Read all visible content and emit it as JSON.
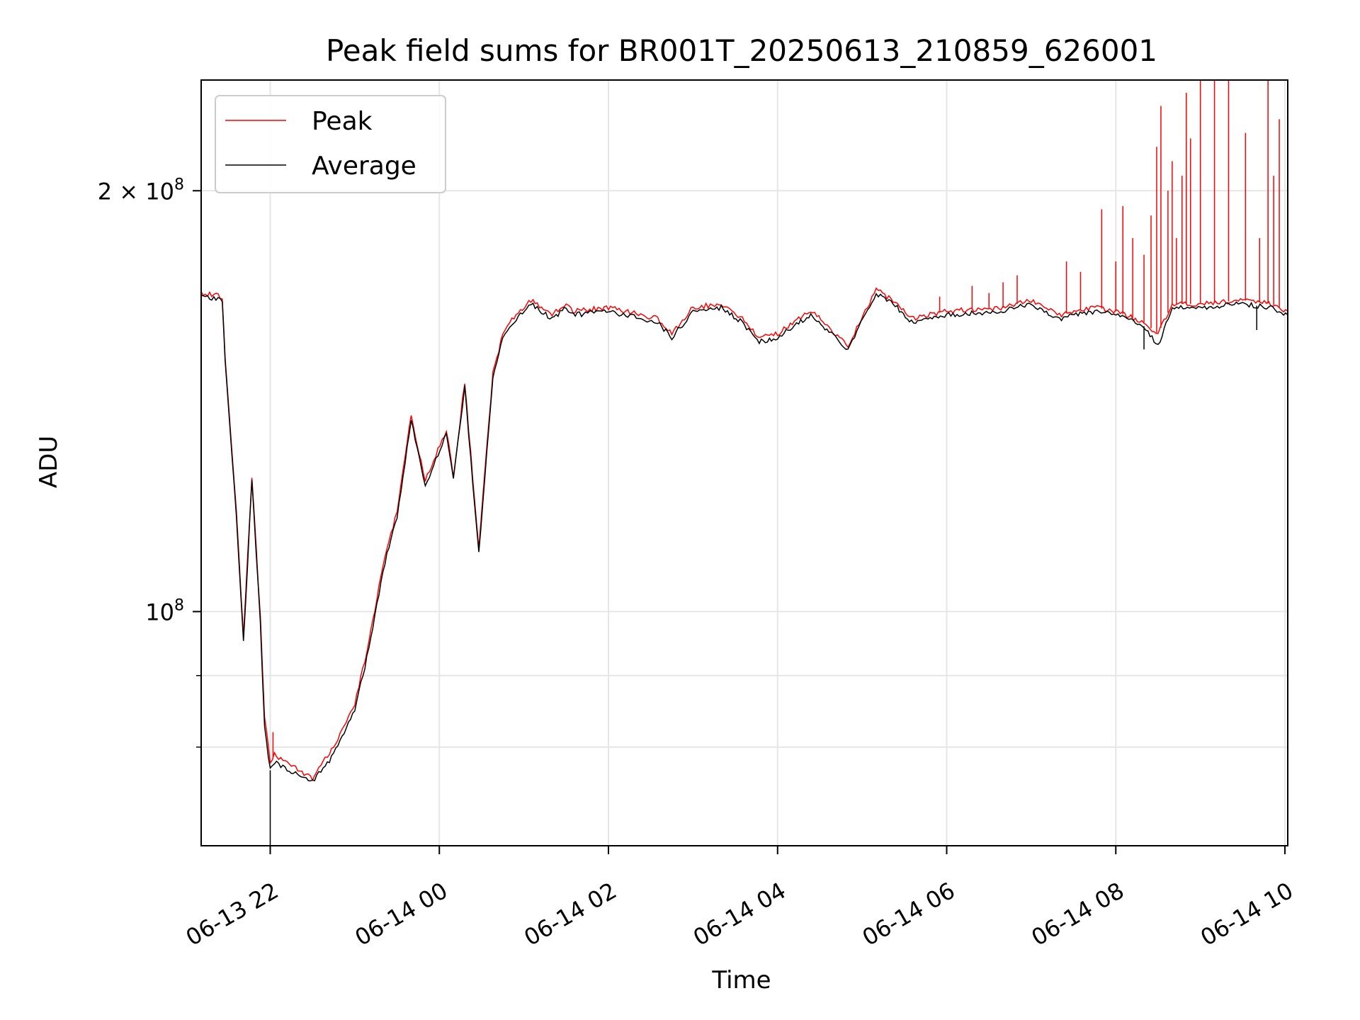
{
  "chart_data": {
    "type": "line",
    "title": "Peak field sums for BR001T_20250613_210859_626001",
    "xlabel": "Time",
    "ylabel": "ADU",
    "y_scale": "log",
    "xlim": [
      "2025-06-13 21:11",
      "2025-06-14 10:02"
    ],
    "ylim": [
      68000000,
      240000000
    ],
    "grid": true,
    "legend": "top-left",
    "x_ticks": [
      {
        "t": "2025-06-13 22:00",
        "label": "06-13 22"
      },
      {
        "t": "2025-06-14 00:00",
        "label": "06-14 00"
      },
      {
        "t": "2025-06-14 02:00",
        "label": "06-14 02"
      },
      {
        "t": "2025-06-14 04:00",
        "label": "06-14 04"
      },
      {
        "t": "2025-06-14 06:00",
        "label": "06-14 06"
      },
      {
        "t": "2025-06-14 08:00",
        "label": "06-14 08"
      },
      {
        "t": "2025-06-14 10:00",
        "label": "06-14 10"
      }
    ],
    "y_ticks_major": [
      {
        "v": 100000000,
        "base": "10",
        "exp": "8",
        "prefix": ""
      },
      {
        "v": 200000000,
        "base": "10",
        "exp": "8",
        "prefix": "2 × "
      }
    ],
    "y_ticks_minor": [
      80000000,
      90000000
    ],
    "series": [
      {
        "name": "Peak",
        "color": "#ff0000",
        "x": [
          "2025-06-13 21:11",
          "2025-06-13 21:26",
          "2025-06-13 21:28",
          "2025-06-13 21:36",
          "2025-06-13 21:41",
          "2025-06-13 21:47",
          "2025-06-13 21:53",
          "2025-06-13 21:56",
          "2025-06-13 22:00",
          "2025-06-13 22:03",
          "2025-06-13 22:30",
          "2025-06-13 22:45",
          "2025-06-13 23:00",
          "2025-06-13 23:10",
          "2025-06-13 23:20",
          "2025-06-13 23:30",
          "2025-06-13 23:40",
          "2025-06-13 23:50",
          "2025-06-14 00:05",
          "2025-06-14 00:10",
          "2025-06-14 00:18",
          "2025-06-14 00:28",
          "2025-06-14 00:38",
          "2025-06-14 00:45",
          "2025-06-14 00:50",
          "2025-06-14 01:05",
          "2025-06-14 01:20",
          "2025-06-14 01:30",
          "2025-06-14 01:35",
          "2025-06-14 02:00",
          "2025-06-14 02:35",
          "2025-06-14 02:45",
          "2025-06-14 03:00",
          "2025-06-14 03:20",
          "2025-06-14 03:35",
          "2025-06-14 03:47",
          "2025-06-14 04:00",
          "2025-06-14 04:15",
          "2025-06-14 04:25",
          "2025-06-14 04:35",
          "2025-06-14 04:50",
          "2025-06-14 05:10",
          "2025-06-14 05:25",
          "2025-06-14 05:35",
          "2025-06-14 06:00",
          "2025-06-14 06:40",
          "2025-06-14 07:00",
          "2025-06-14 07:20",
          "2025-06-14 07:45",
          "2025-06-14 08:00",
          "2025-06-14 08:20",
          "2025-06-14 08:30",
          "2025-06-14 08:40",
          "2025-06-14 09:00",
          "2025-06-14 09:30",
          "2025-06-14 09:50",
          "2025-06-14 10:02"
        ],
        "y": [
          169000000,
          168000000,
          152000000,
          118000000,
          96000000,
          125000000,
          99000000,
          84000000,
          78000000,
          79000000,
          76000000,
          80000000,
          86000000,
          95000000,
          108000000,
          118000000,
          138000000,
          124000000,
          135000000,
          125000000,
          146000000,
          111000000,
          148000000,
          158000000,
          161000000,
          167000000,
          163000000,
          166000000,
          164000000,
          165000000,
          162000000,
          158000000,
          165000000,
          166000000,
          162000000,
          157000000,
          158000000,
          162000000,
          164000000,
          160000000,
          155000000,
          170000000,
          166000000,
          162000000,
          164000000,
          165000000,
          167000000,
          163000000,
          165000000,
          164000000,
          161000000,
          158000000,
          166000000,
          166000000,
          167000000,
          166000000,
          164000000
        ],
        "spikes": [
          {
            "t": "2025-06-13 22:02",
            "v": 82000000
          },
          {
            "t": "2025-06-14 05:55",
            "v": 168000000
          },
          {
            "t": "2025-06-14 06:18",
            "v": 171000000
          },
          {
            "t": "2025-06-14 06:30",
            "v": 169000000
          },
          {
            "t": "2025-06-14 06:40",
            "v": 172000000
          },
          {
            "t": "2025-06-14 06:50",
            "v": 174000000
          },
          {
            "t": "2025-06-14 07:25",
            "v": 178000000
          },
          {
            "t": "2025-06-14 07:35",
            "v": 175000000
          },
          {
            "t": "2025-06-14 07:50",
            "v": 194000000
          },
          {
            "t": "2025-06-14 08:00",
            "v": 178000000
          },
          {
            "t": "2025-06-14 08:05",
            "v": 195000000
          },
          {
            "t": "2025-06-14 08:12",
            "v": 185000000
          },
          {
            "t": "2025-06-14 08:20",
            "v": 180000000
          },
          {
            "t": "2025-06-14 08:25",
            "v": 192000000
          },
          {
            "t": "2025-06-14 08:29",
            "v": 215000000
          },
          {
            "t": "2025-06-14 08:32",
            "v": 230000000
          },
          {
            "t": "2025-06-14 08:37",
            "v": 200000000
          },
          {
            "t": "2025-06-14 08:40",
            "v": 210000000
          },
          {
            "t": "2025-06-14 08:43",
            "v": 185000000
          },
          {
            "t": "2025-06-14 08:47",
            "v": 205000000
          },
          {
            "t": "2025-06-14 08:50",
            "v": 235000000
          },
          {
            "t": "2025-06-14 08:53",
            "v": 218000000
          },
          {
            "t": "2025-06-14 09:00",
            "v": 240000000
          },
          {
            "t": "2025-06-14 09:10",
            "v": 240000000
          },
          {
            "t": "2025-06-14 09:20",
            "v": 240000000
          },
          {
            "t": "2025-06-14 09:32",
            "v": 220000000
          },
          {
            "t": "2025-06-14 09:42",
            "v": 185000000
          },
          {
            "t": "2025-06-14 09:48",
            "v": 240000000
          },
          {
            "t": "2025-06-14 09:52",
            "v": 205000000
          },
          {
            "t": "2025-06-14 09:56",
            "v": 225000000
          }
        ]
      },
      {
        "name": "Average",
        "color": "#000000",
        "x": [
          "2025-06-13 21:11",
          "2025-06-13 21:26",
          "2025-06-13 21:28",
          "2025-06-13 21:36",
          "2025-06-13 21:41",
          "2025-06-13 21:47",
          "2025-06-13 21:53",
          "2025-06-13 21:56",
          "2025-06-13 22:00",
          "2025-06-13 22:03",
          "2025-06-13 22:30",
          "2025-06-13 22:45",
          "2025-06-13 23:00",
          "2025-06-13 23:10",
          "2025-06-13 23:20",
          "2025-06-13 23:30",
          "2025-06-13 23:40",
          "2025-06-13 23:50",
          "2025-06-14 00:05",
          "2025-06-14 00:10",
          "2025-06-14 00:18",
          "2025-06-14 00:28",
          "2025-06-14 00:38",
          "2025-06-14 00:45",
          "2025-06-14 00:50",
          "2025-06-14 01:05",
          "2025-06-14 01:20",
          "2025-06-14 01:30",
          "2025-06-14 01:35",
          "2025-06-14 02:00",
          "2025-06-14 02:35",
          "2025-06-14 02:45",
          "2025-06-14 03:00",
          "2025-06-14 03:20",
          "2025-06-14 03:35",
          "2025-06-14 03:47",
          "2025-06-14 04:00",
          "2025-06-14 04:15",
          "2025-06-14 04:25",
          "2025-06-14 04:35",
          "2025-06-14 04:50",
          "2025-06-14 05:10",
          "2025-06-14 05:25",
          "2025-06-14 05:35",
          "2025-06-14 06:00",
          "2025-06-14 06:40",
          "2025-06-14 07:00",
          "2025-06-14 07:20",
          "2025-06-14 07:45",
          "2025-06-14 08:00",
          "2025-06-14 08:20",
          "2025-06-14 08:30",
          "2025-06-14 08:40",
          "2025-06-14 09:00",
          "2025-06-14 09:30",
          "2025-06-14 09:50",
          "2025-06-14 10:02"
        ],
        "y": [
          168000000,
          167000000,
          151000000,
          117000000,
          95000000,
          124000000,
          98000000,
          83000000,
          77000000,
          78000000,
          75500000,
          79000000,
          85000000,
          94000000,
          107000000,
          117000000,
          137000000,
          123000000,
          134000000,
          124000000,
          145000000,
          110000000,
          147000000,
          157000000,
          160000000,
          166000000,
          162000000,
          165000000,
          163000000,
          164000000,
          161000000,
          157000000,
          164000000,
          165000000,
          161000000,
          156000000,
          157000000,
          161000000,
          163000000,
          159000000,
          154000000,
          169000000,
          165000000,
          161000000,
          163000000,
          164000000,
          166000000,
          162000000,
          164000000,
          163000000,
          160000000,
          155000000,
          165000000,
          165000000,
          166000000,
          165000000,
          163000000
        ],
        "dips": [
          {
            "t": "2025-06-13 22:00",
            "v": 68000000
          },
          {
            "t": "2025-06-14 08:20",
            "v": 154000000
          },
          {
            "t": "2025-06-14 09:40",
            "v": 159000000
          }
        ]
      }
    ]
  }
}
